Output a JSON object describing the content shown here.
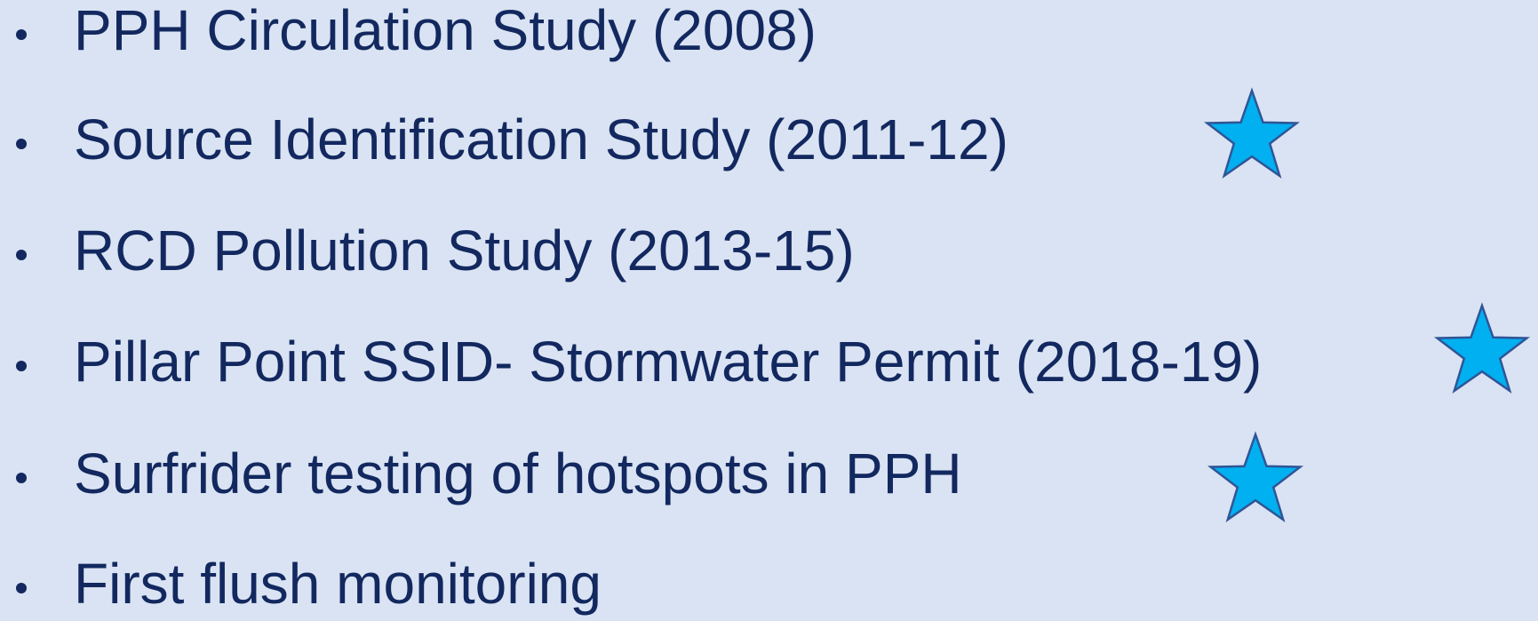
{
  "items": [
    {
      "text": "PPH Circulation Study (2008)",
      "star": false
    },
    {
      "text": "Source Identification Study (2011-12)",
      "star": true
    },
    {
      "text": "RCD Pollution Study (2013-15)",
      "star": false
    },
    {
      "text": "Pillar Point SSID- Stormwater Permit (2018-19)",
      "star": true
    },
    {
      "text": "Surfrider testing of hotspots in PPH",
      "star": true
    },
    {
      "text": "First flush monitoring",
      "star": false
    }
  ]
}
